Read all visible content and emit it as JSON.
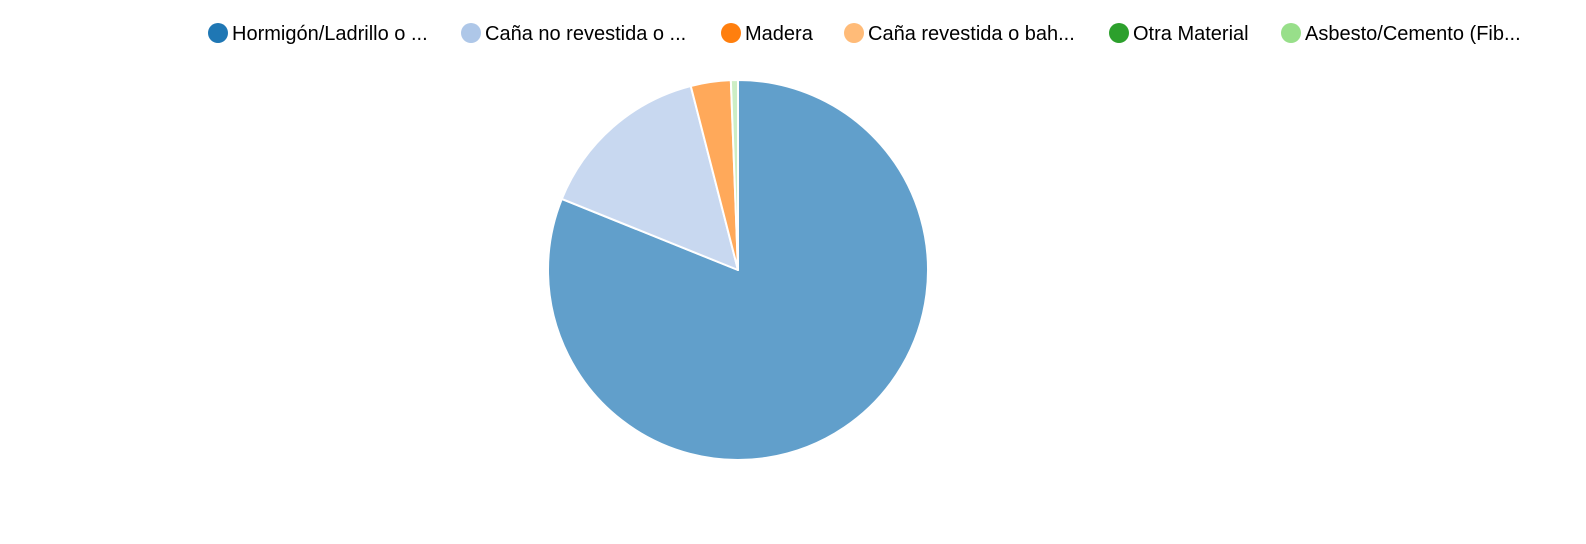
{
  "chart_data": {
    "type": "pie",
    "title": "",
    "legend_position": "top",
    "labels": [
      "Hormigón/Ladrillo o ...",
      "Caña no revestida o ...",
      "Madera",
      "Caña revestida o bah...",
      "Otra Material",
      "Asbesto/Cemento (Fib..."
    ],
    "values": [
      81.1,
      14.9,
      0.0,
      3.4,
      0.0,
      0.6
    ],
    "legend_colors": [
      "#1f77b4",
      "#aec7e8",
      "#ff7f0e",
      "#ffbb78",
      "#2ca02c",
      "#98df8a"
    ],
    "slice_colors": [
      "#619fcb",
      "#c8d8f0",
      "#ff9f4e",
      "#ffa95a",
      "#4cb04c",
      "#cdeec5"
    ],
    "start_angle_deg": 0,
    "direction": "clockwise"
  }
}
